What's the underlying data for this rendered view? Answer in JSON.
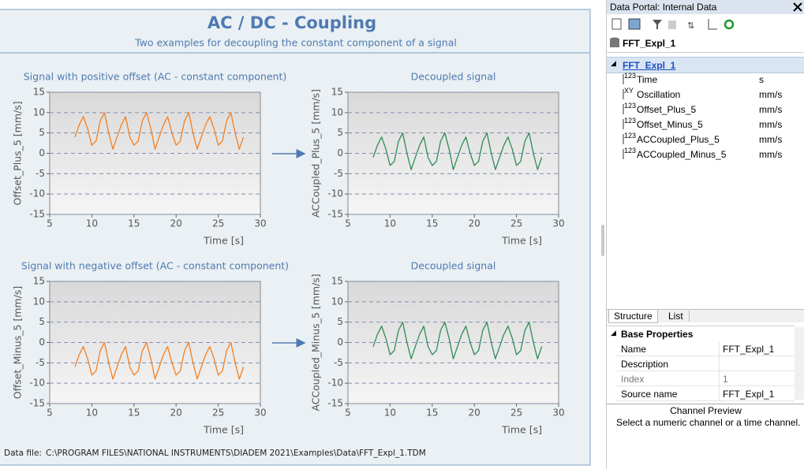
{
  "report": {
    "title": "AC / DC - Coupling",
    "subtitle": "Two examples for decoupling the constant component of a signal",
    "footer_label": "Data  file:",
    "footer_path": "C:\\PROGRAM FILES\\NATIONAL INSTRUMENTS\\DIADEM 2021\\Examples\\Data\\FFT_Expl_1.TDM"
  },
  "chart_data": [
    {
      "type": "line",
      "title": "Signal with positive offset (AC - constant component)",
      "x_label": "Time [s]",
      "y_label": "Offset_Plus_5 [mm/s]",
      "color": "#f47f1f",
      "grid": true,
      "xlim": [
        5,
        30
      ],
      "xticks": [
        5,
        10,
        15,
        20,
        25,
        30
      ],
      "ylim": [
        -15,
        15
      ],
      "yticks": [
        -15,
        -10,
        -5,
        0,
        5,
        10,
        15
      ],
      "x": [
        8,
        8.5,
        9,
        9.5,
        10,
        10.5,
        11,
        11.5,
        12,
        12.5,
        13,
        13.5,
        14,
        14.5,
        15,
        15.5,
        16,
        16.5,
        17,
        17.5,
        18,
        18.5,
        19,
        19.5,
        20,
        20.5,
        21,
        21.5,
        22,
        22.5,
        23,
        23.5,
        24,
        24.5,
        25,
        25.5,
        26,
        26.5,
        27,
        27.5,
        28
      ],
      "values": [
        4,
        7,
        9,
        6,
        2,
        3,
        8,
        10,
        5,
        1,
        4,
        7,
        9,
        4,
        2,
        3,
        8,
        10,
        6,
        1,
        4,
        7,
        9,
        5,
        2,
        3,
        8,
        10,
        5,
        1,
        4,
        7,
        9,
        6,
        2,
        3,
        8,
        10,
        5,
        1,
        4
      ]
    },
    {
      "type": "line",
      "title": "Decoupled signal",
      "x_label": "Time [s]",
      "y_label": "ACCoupled_Plus_5 [mm/s]",
      "color": "#2e8b57",
      "grid": true,
      "xlim": [
        5,
        30
      ],
      "xticks": [
        5,
        10,
        15,
        20,
        25,
        30
      ],
      "ylim": [
        -15,
        15
      ],
      "yticks": [
        -15,
        -10,
        -5,
        0,
        5,
        10,
        15
      ],
      "x": [
        8,
        8.5,
        9,
        9.5,
        10,
        10.5,
        11,
        11.5,
        12,
        12.5,
        13,
        13.5,
        14,
        14.5,
        15,
        15.5,
        16,
        16.5,
        17,
        17.5,
        18,
        18.5,
        19,
        19.5,
        20,
        20.5,
        21,
        21.5,
        22,
        22.5,
        23,
        23.5,
        24,
        24.5,
        25,
        25.5,
        26,
        26.5,
        27,
        27.5,
        28
      ],
      "values": [
        -1,
        2,
        4,
        1,
        -3,
        -2,
        3,
        5,
        0,
        -4,
        -1,
        2,
        4,
        -1,
        -3,
        -2,
        3,
        5,
        1,
        -4,
        -1,
        2,
        4,
        0,
        -3,
        -2,
        3,
        5,
        0,
        -4,
        -1,
        2,
        4,
        1,
        -3,
        -2,
        3,
        5,
        0,
        -4,
        -1
      ]
    },
    {
      "type": "line",
      "title": "Signal with negative offset (AC - constant component)",
      "x_label": "Time [s]",
      "y_label": "Offset_Minus_5 [mm/s]",
      "color": "#f47f1f",
      "grid": true,
      "xlim": [
        5,
        30
      ],
      "xticks": [
        5,
        10,
        15,
        20,
        25,
        30
      ],
      "ylim": [
        -15,
        15
      ],
      "yticks": [
        -15,
        -10,
        -5,
        0,
        5,
        10,
        15
      ],
      "x": [
        8,
        8.5,
        9,
        9.5,
        10,
        10.5,
        11,
        11.5,
        12,
        12.5,
        13,
        13.5,
        14,
        14.5,
        15,
        15.5,
        16,
        16.5,
        17,
        17.5,
        18,
        18.5,
        19,
        19.5,
        20,
        20.5,
        21,
        21.5,
        22,
        22.5,
        23,
        23.5,
        24,
        24.5,
        25,
        25.5,
        26,
        26.5,
        27,
        27.5,
        28
      ],
      "values": [
        -6,
        -3,
        -1,
        -4,
        -8,
        -7,
        -2,
        0,
        -5,
        -9,
        -6,
        -3,
        -1,
        -6,
        -8,
        -7,
        -2,
        0,
        -4,
        -9,
        -6,
        -3,
        -1,
        -5,
        -8,
        -7,
        -2,
        0,
        -5,
        -9,
        -6,
        -3,
        -1,
        -4,
        -8,
        -7,
        -2,
        0,
        -5,
        -9,
        -6
      ]
    },
    {
      "type": "line",
      "title": "Decoupled signal",
      "x_label": "Time [s]",
      "y_label": "ACCoupled_Minus_5 [mm/s]",
      "color": "#2e8b57",
      "grid": true,
      "xlim": [
        5,
        30
      ],
      "xticks": [
        5,
        10,
        15,
        20,
        25,
        30
      ],
      "ylim": [
        -15,
        15
      ],
      "yticks": [
        -15,
        -10,
        -5,
        0,
        5,
        10,
        15
      ],
      "x": [
        8,
        8.5,
        9,
        9.5,
        10,
        10.5,
        11,
        11.5,
        12,
        12.5,
        13,
        13.5,
        14,
        14.5,
        15,
        15.5,
        16,
        16.5,
        17,
        17.5,
        18,
        18.5,
        19,
        19.5,
        20,
        20.5,
        21,
        21.5,
        22,
        22.5,
        23,
        23.5,
        24,
        24.5,
        25,
        25.5,
        26,
        26.5,
        27,
        27.5,
        28
      ],
      "values": [
        -1,
        2,
        4,
        1,
        -3,
        -2,
        3,
        5,
        0,
        -4,
        -1,
        2,
        4,
        -1,
        -3,
        -2,
        3,
        5,
        1,
        -4,
        -1,
        2,
        4,
        0,
        -3,
        -2,
        3,
        5,
        0,
        -4,
        -1,
        2,
        4,
        1,
        -3,
        -2,
        3,
        5,
        0,
        -4,
        -1
      ]
    }
  ],
  "panel": {
    "title": "Data Portal: Internal Data",
    "file": "FFT_Expl_1",
    "group": "FFT_Expl_1",
    "channels": [
      {
        "kind": "123",
        "name": "Time",
        "unit": "s"
      },
      {
        "kind": "XY",
        "name": "Oscillation",
        "unit": "mm/s"
      },
      {
        "kind": "123",
        "name": "Offset_Plus_5",
        "unit": "mm/s"
      },
      {
        "kind": "123",
        "name": "Offset_Minus_5",
        "unit": "mm/s"
      },
      {
        "kind": "123",
        "name": "ACCoupled_Plus_5",
        "unit": "mm/s"
      },
      {
        "kind": "123",
        "name": "ACCoupled_Minus_5",
        "unit": "mm/s"
      }
    ],
    "tabs": [
      "Structure",
      "List"
    ],
    "properties_title": "Base Properties",
    "properties": [
      {
        "name": "Name",
        "value": "FFT_Expl_1"
      },
      {
        "name": "Description"
      },
      {
        "name": "Index",
        "value": "1"
      },
      {
        "name": "Source name",
        "value": "FFT_Expl_1"
      }
    ],
    "preview_title": "Channel Preview",
    "preview_text": "Select a numeric channel or a time channel."
  }
}
